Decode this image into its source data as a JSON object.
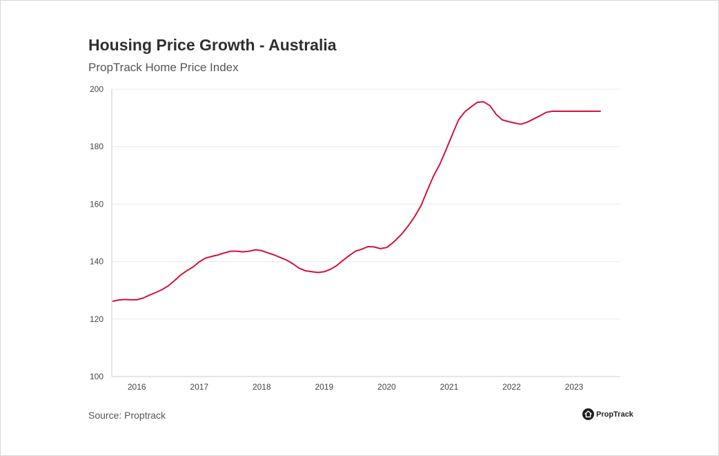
{
  "header": {
    "title": "Housing Price Growth - Australia",
    "subtitle": "PropTrack Home Price Index"
  },
  "footer": {
    "source": "Source: Proptrack",
    "brand": "PropTrack",
    "brand_icon": "house-icon"
  },
  "colors": {
    "line": "#d6103a",
    "grid": "#e8e8e8",
    "axis": "#cccccc"
  },
  "chart_data": {
    "type": "line",
    "title": "Housing Price Growth - Australia",
    "subtitle": "PropTrack Home Price Index",
    "xlabel": "",
    "ylabel": "",
    "ylim": [
      100,
      200
    ],
    "xlim": [
      2015.6,
      2023.74
    ],
    "yticks": [
      100,
      120,
      140,
      160,
      180,
      200
    ],
    "xticks": [
      {
        "value": 2016,
        "label": "2016"
      },
      {
        "value": 2017,
        "label": "2017"
      },
      {
        "value": 2018,
        "label": "2018"
      },
      {
        "value": 2019,
        "label": "2019"
      },
      {
        "value": 2020,
        "label": "2020"
      },
      {
        "value": 2021,
        "label": "2021"
      },
      {
        "value": 2022,
        "label": "2022"
      },
      {
        "value": 2023,
        "label": "2023"
      }
    ],
    "grid": true,
    "legend": "none",
    "series": [
      {
        "x": [
          2015.62,
          2015.7,
          2015.8,
          2015.9,
          2016.0,
          2016.1,
          2016.2,
          2016.3,
          2016.4,
          2016.5,
          2016.6,
          2016.7,
          2016.8,
          2016.9,
          2017.0,
          2017.1,
          2017.2,
          2017.3,
          2017.4,
          2017.5,
          2017.6,
          2017.7,
          2017.8,
          2017.9,
          2018.0,
          2018.1,
          2018.2,
          2018.3,
          2018.4,
          2018.5,
          2018.6,
          2018.7,
          2018.8,
          2018.9,
          2019.0,
          2019.1,
          2019.2,
          2019.3,
          2019.4,
          2019.5,
          2019.6,
          2019.7,
          2019.8,
          2019.9,
          2020.0,
          2020.08,
          2020.15,
          2020.25,
          2020.35,
          2020.45,
          2020.55,
          2020.65,
          2020.75,
          2020.85,
          2020.95,
          2021.05,
          2021.15,
          2021.25,
          2021.35,
          2021.45,
          2021.55,
          2021.65,
          2021.75,
          2021.85,
          2021.95,
          2022.05,
          2022.15,
          2022.25,
          2022.35,
          2022.45,
          2022.55,
          2022.65,
          2022.75,
          2022.85,
          2022.95,
          2023.05,
          2023.15,
          2023.25,
          2023.35,
          2023.42
        ],
        "y": [
          126.2,
          126.6,
          126.8,
          126.7,
          126.7,
          127.3,
          128.3,
          129.2,
          130.2,
          131.5,
          133.3,
          135.3,
          136.8,
          138.1,
          139.9,
          141.2,
          141.8,
          142.3,
          143.0,
          143.6,
          143.6,
          143.4,
          143.6,
          144.1,
          143.8,
          143.0,
          142.3,
          141.4,
          140.5,
          139.2,
          137.7,
          136.8,
          136.5,
          136.2,
          136.5,
          137.3,
          138.6,
          140.4,
          142.1,
          143.6,
          144.3,
          145.2,
          145.1,
          144.5,
          144.9,
          146.2,
          147.6,
          149.8,
          152.6,
          155.7,
          159.5,
          164.7,
          169.8,
          173.8,
          178.9,
          184.1,
          189.3,
          192.1,
          193.8,
          195.4,
          195.6,
          194.3,
          191.3,
          189.3,
          188.7,
          188.2,
          187.8,
          188.5,
          189.6,
          190.7,
          191.9,
          192.3,
          192.3,
          192.3,
          192.3,
          192.3,
          192.3,
          192.3,
          192.3,
          192.3
        ]
      }
    ]
  }
}
